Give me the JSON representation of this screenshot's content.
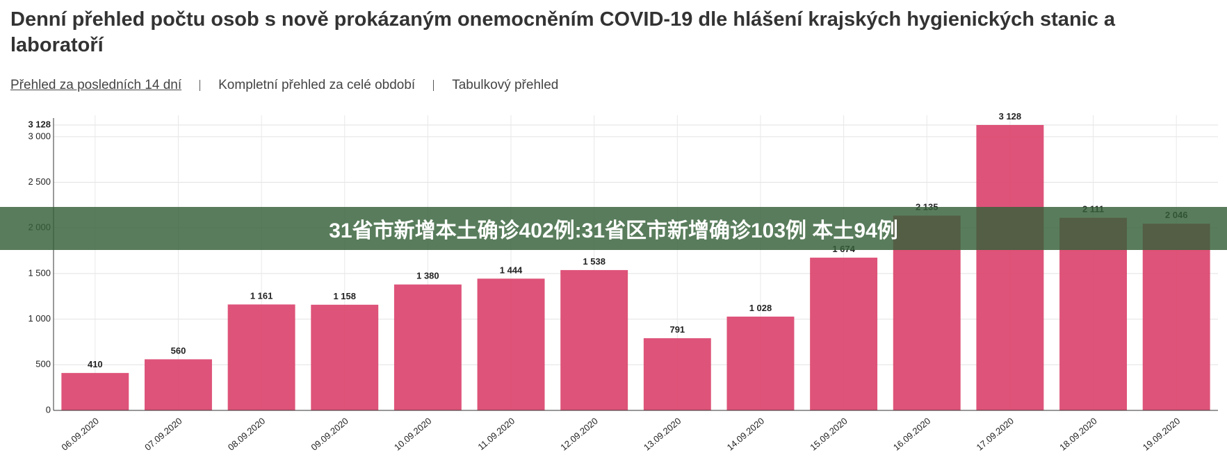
{
  "title": "Denní přehled počtu osob s nově prokázaným onemocněním COVID-19 dle hlášení krajských hygienických stanic a laboratoří",
  "nav": [
    "Přehled za posledních 14 dní",
    "Kompletní přehled za celé období",
    "Tabulkový přehled"
  ],
  "banner": "31省市新增本土确诊402例:31省区市新增确诊103例 本土94例",
  "chart_data": {
    "type": "bar",
    "categories": [
      "06.09.2020",
      "07.09.2020",
      "08.09.2020",
      "09.09.2020",
      "10.09.2020",
      "11.09.2020",
      "12.09.2020",
      "13.09.2020",
      "14.09.2020",
      "15.09.2020",
      "16.09.2020",
      "17.09.2020",
      "18.09.2020",
      "19.09.2020"
    ],
    "values": [
      410,
      560,
      1161,
      1158,
      1380,
      1444,
      1538,
      791,
      1028,
      1674,
      2135,
      3128,
      2111,
      2046
    ],
    "value_labels": [
      "410",
      "560",
      "1 161",
      "1 158",
      "1 380",
      "1 444",
      "1 538",
      "791",
      "1 028",
      "1 674",
      "2 135",
      "3 128",
      "2 111",
      "2 046"
    ],
    "color": "#dc4a72",
    "ylim": [
      0,
      3128
    ],
    "yticks": [
      0,
      500,
      {
        "value": 1000,
        "label": "1 000"
      },
      {
        "value": 1500,
        "label": "1 500"
      },
      {
        "value": 2000,
        "label": "2 000"
      },
      {
        "value": 2500,
        "label": "2 500"
      },
      {
        "value": 3000,
        "label": "3 000"
      },
      {
        "value": 3128,
        "label": "3 128"
      }
    ],
    "grid": true
  }
}
